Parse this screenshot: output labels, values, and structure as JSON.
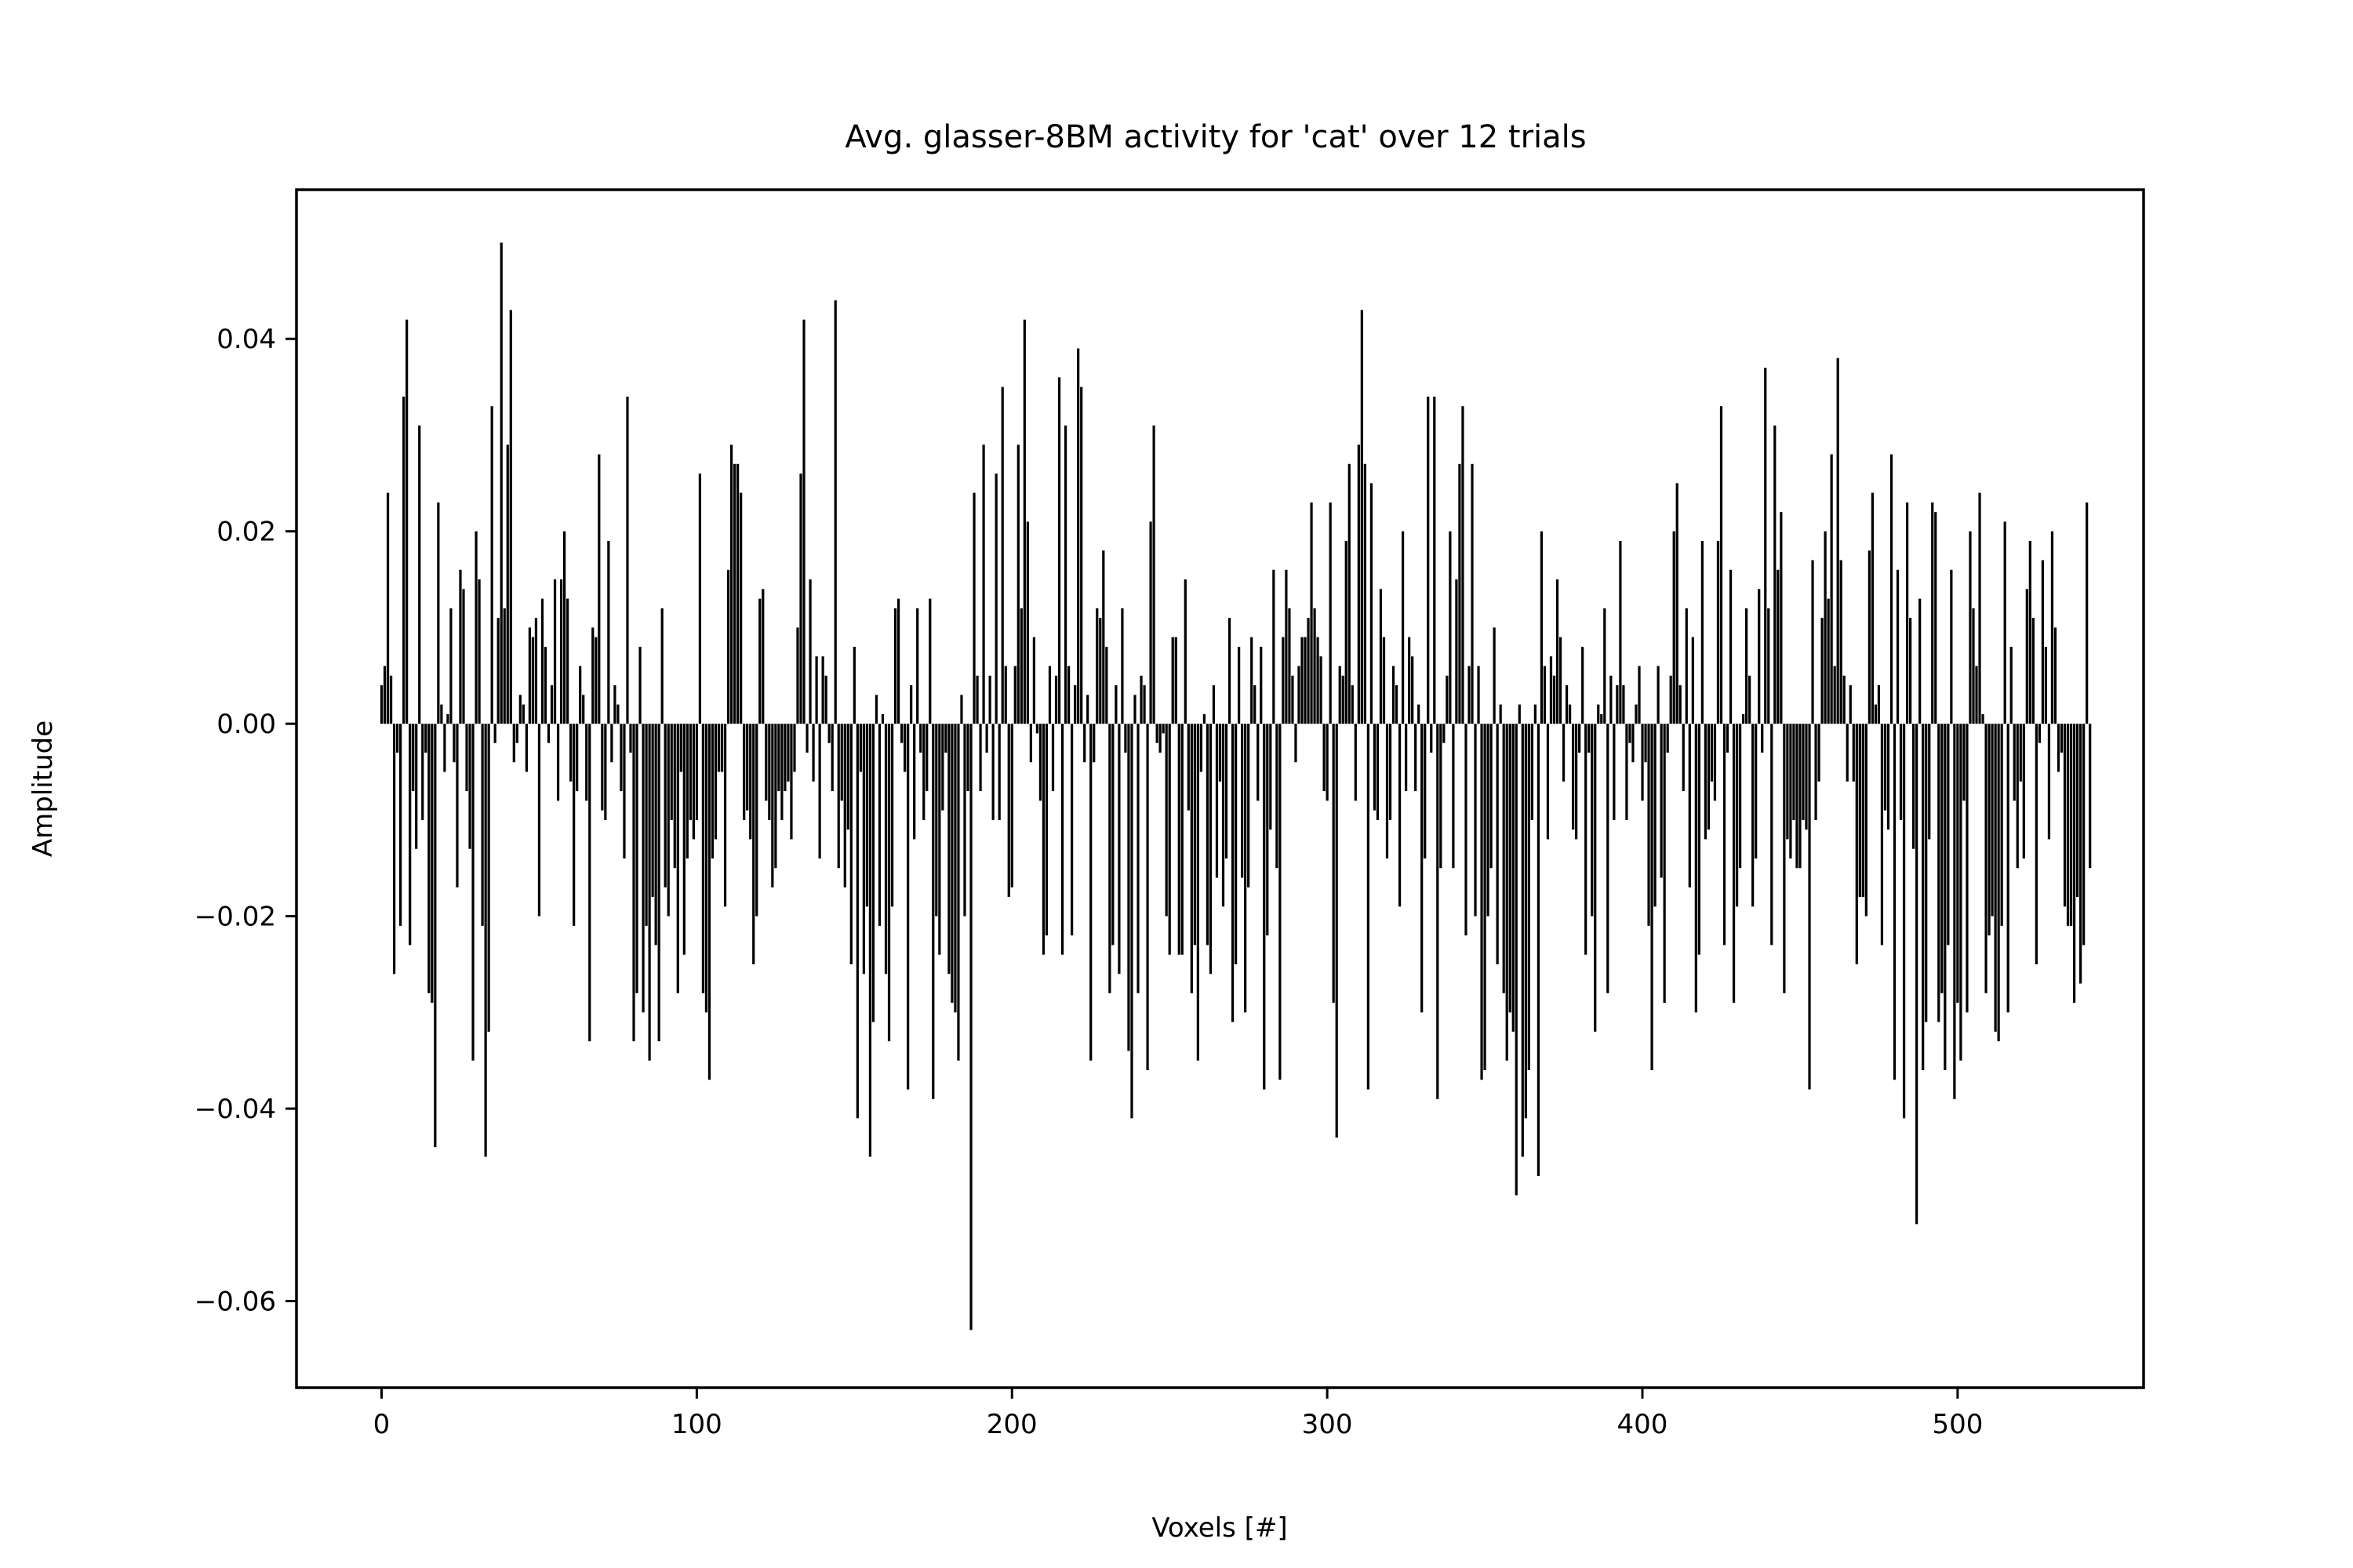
{
  "chart_data": {
    "type": "bar",
    "title": "Avg. glasser-8BM activity for 'cat' over 12 trials",
    "xlabel": "Voxels [#]",
    "ylabel": "Amplitude",
    "xlim": [
      -27,
      559
    ],
    "ylim": [
      -0.069,
      0.0555
    ],
    "xticks": [
      0,
      100,
      200,
      300,
      400,
      500
    ],
    "xtick_labels": [
      "0",
      "100",
      "200",
      "300",
      "400",
      "500"
    ],
    "yticks": [
      -0.06,
      -0.04,
      -0.02,
      0.0,
      0.02,
      0.04
    ],
    "ytick_labels": [
      "−0.06",
      "−0.04",
      "−0.02",
      "0.00",
      "0.02",
      "0.04"
    ],
    "grid": false,
    "bar_color": "#000000",
    "x_start": 0,
    "values": [
      0.004,
      0.006,
      0.024,
      0.005,
      -0.026,
      -0.003,
      -0.021,
      0.034,
      0.042,
      -0.023,
      -0.007,
      -0.013,
      0.031,
      -0.01,
      -0.003,
      -0.028,
      -0.029,
      -0.044,
      0.023,
      0.002,
      -0.005,
      0.001,
      0.012,
      -0.004,
      -0.017,
      0.016,
      0.014,
      -0.007,
      -0.013,
      -0.035,
      0.02,
      0.015,
      -0.021,
      -0.045,
      -0.032,
      0.033,
      -0.002,
      0.011,
      0.05,
      0.012,
      0.029,
      0.043,
      -0.004,
      -0.002,
      0.003,
      0.002,
      -0.005,
      0.01,
      0.009,
      0.011,
      -0.02,
      0.013,
      0.008,
      -0.002,
      0.004,
      0.015,
      -0.008,
      0.015,
      0.02,
      0.013,
      -0.006,
      -0.021,
      -0.007,
      0.006,
      0.003,
      -0.008,
      -0.033,
      0.01,
      0.009,
      0.028,
      -0.009,
      -0.01,
      0.019,
      -0.004,
      0.004,
      0.002,
      -0.007,
      -0.014,
      0.034,
      -0.003,
      -0.033,
      -0.028,
      0.008,
      -0.03,
      -0.021,
      -0.035,
      -0.018,
      -0.023,
      -0.033,
      0.012,
      -0.017,
      -0.02,
      -0.01,
      -0.015,
      -0.028,
      -0.005,
      -0.024,
      -0.014,
      -0.01,
      -0.012,
      -0.01,
      0.026,
      -0.028,
      -0.03,
      -0.037,
      -0.014,
      -0.012,
      -0.005,
      -0.005,
      -0.019,
      0.016,
      0.029,
      0.027,
      0.027,
      0.024,
      -0.01,
      -0.009,
      -0.012,
      -0.025,
      -0.02,
      0.013,
      0.014,
      -0.008,
      -0.01,
      -0.017,
      -0.015,
      -0.007,
      -0.01,
      -0.007,
      -0.006,
      -0.012,
      -0.005,
      0.01,
      0.026,
      0.042,
      -0.003,
      0.015,
      -0.006,
      0.007,
      -0.014,
      0.007,
      0.005,
      -0.002,
      -0.007,
      0.044,
      -0.015,
      -0.008,
      -0.017,
      -0.011,
      -0.025,
      0.008,
      -0.041,
      -0.005,
      -0.026,
      -0.019,
      -0.045,
      -0.031,
      0.003,
      -0.021,
      0.001,
      -0.026,
      -0.033,
      -0.019,
      0.012,
      0.013,
      -0.002,
      -0.005,
      -0.038,
      0.004,
      -0.012,
      0.012,
      -0.003,
      -0.01,
      -0.007,
      0.013,
      -0.039,
      -0.02,
      -0.024,
      -0.009,
      -0.003,
      -0.026,
      -0.029,
      -0.03,
      -0.035,
      0.003,
      -0.02,
      -0.007,
      -0.063,
      0.024,
      0.005,
      -0.007,
      0.029,
      -0.003,
      0.005,
      -0.01,
      0.026,
      -0.01,
      0.035,
      0.006,
      -0.018,
      -0.017,
      0.006,
      0.029,
      0.012,
      0.042,
      0.021,
      -0.004,
      0.009,
      -0.001,
      -0.008,
      -0.024,
      -0.022,
      0.006,
      -0.007,
      0.005,
      0.036,
      -0.024,
      0.031,
      0.006,
      -0.022,
      0.004,
      0.039,
      0.035,
      -0.004,
      0.003,
      -0.035,
      -0.004,
      0.012,
      0.011,
      0.018,
      0.008,
      -0.028,
      -0.023,
      0.004,
      -0.026,
      0.012,
      -0.003,
      -0.034,
      -0.041,
      0.003,
      -0.028,
      0.005,
      0.004,
      -0.036,
      0.021,
      0.031,
      -0.002,
      -0.003,
      -0.001,
      -0.02,
      -0.024,
      0.009,
      0.009,
      -0.024,
      -0.024,
      0.015,
      -0.009,
      -0.028,
      -0.023,
      -0.035,
      -0.005,
      0.001,
      -0.023,
      -0.026,
      0.004,
      -0.016,
      -0.006,
      -0.019,
      -0.014,
      0.011,
      -0.031,
      -0.025,
      0.008,
      -0.016,
      -0.03,
      -0.017,
      0.009,
      0.004,
      -0.008,
      0.008,
      -0.038,
      -0.022,
      -0.011,
      0.016,
      -0.015,
      -0.037,
      0.009,
      0.016,
      0.012,
      0.005,
      -0.004,
      0.006,
      0.009,
      0.009,
      0.011,
      0.023,
      0.012,
      0.009,
      0.007,
      -0.007,
      -0.008,
      0.023,
      -0.029,
      -0.043,
      0.006,
      0.005,
      0.019,
      0.027,
      0.004,
      -0.008,
      0.029,
      0.043,
      0.027,
      -0.038,
      0.025,
      -0.009,
      -0.01,
      0.014,
      0.009,
      -0.014,
      -0.01,
      0.006,
      0.004,
      -0.019,
      0.02,
      -0.007,
      0.009,
      0.007,
      -0.007,
      0.002,
      -0.03,
      -0.014,
      0.034,
      -0.003,
      0.034,
      -0.039,
      -0.015,
      -0.002,
      0.005,
      0.02,
      -0.015,
      0.015,
      0.027,
      0.033,
      -0.022,
      0.006,
      0.027,
      -0.02,
      0.006,
      -0.037,
      -0.036,
      -0.02,
      -0.015,
      0.01,
      -0.025,
      0.002,
      -0.028,
      -0.035,
      -0.03,
      -0.032,
      -0.049,
      0.002,
      -0.045,
      -0.041,
      -0.036,
      -0.01,
      0.002,
      -0.047,
      0.02,
      0.006,
      -0.012,
      0.007,
      0.005,
      0.015,
      0.009,
      -0.006,
      0.004,
      0.002,
      -0.011,
      -0.012,
      -0.003,
      0.008,
      -0.024,
      -0.003,
      -0.02,
      -0.032,
      0.002,
      0.001,
      0.012,
      -0.028,
      0.005,
      -0.01,
      0.004,
      0.019,
      0.004,
      -0.01,
      -0.002,
      -0.004,
      0.002,
      0.006,
      -0.008,
      -0.004,
      -0.021,
      -0.036,
      -0.019,
      0.006,
      -0.016,
      -0.029,
      -0.003,
      0.005,
      0.02,
      0.025,
      0.004,
      -0.007,
      0.012,
      -0.017,
      0.009,
      -0.03,
      -0.024,
      0.019,
      -0.012,
      -0.011,
      -0.006,
      -0.008,
      0.019,
      0.033,
      -0.023,
      -0.003,
      0.016,
      -0.029,
      -0.019,
      -0.015,
      0.001,
      0.012,
      0.005,
      -0.019,
      -0.014,
      0.014,
      -0.003,
      0.037,
      0.012,
      -0.023,
      0.031,
      0.016,
      0.022,
      -0.028,
      -0.012,
      -0.014,
      -0.01,
      -0.015,
      -0.015,
      -0.01,
      -0.011,
      -0.038,
      0.017,
      -0.01,
      -0.006,
      0.011,
      0.02,
      0.013,
      0.028,
      0.006,
      0.038,
      0.017,
      0.005,
      -0.006,
      0.004,
      -0.006,
      -0.025,
      -0.018,
      -0.018,
      -0.02,
      0.018,
      0.024,
      0.002,
      0.004,
      -0.023,
      -0.009,
      -0.011,
      0.028,
      -0.037,
      0.016,
      -0.01,
      -0.041,
      0.023,
      0.011,
      -0.013,
      -0.052,
      0.013,
      -0.036,
      -0.031,
      -0.012,
      0.023,
      0.022,
      -0.031,
      -0.028,
      -0.036,
      -0.023,
      0.016,
      -0.039,
      -0.029,
      -0.035,
      -0.008,
      -0.03,
      0.02,
      0.012,
      0.006,
      0.024,
      0.001,
      -0.028,
      -0.022,
      -0.02,
      -0.032,
      -0.033,
      -0.021,
      0.021,
      -0.03,
      0.008,
      -0.008,
      -0.015,
      -0.006,
      -0.014,
      0.014,
      0.019,
      0.011,
      -0.025,
      -0.002,
      0.017,
      0.008,
      -0.012,
      0.02,
      0.01,
      -0.005,
      -0.003,
      -0.019,
      -0.021,
      -0.021,
      -0.029,
      -0.018,
      -0.027,
      -0.023,
      0.023,
      -0.015
    ]
  }
}
